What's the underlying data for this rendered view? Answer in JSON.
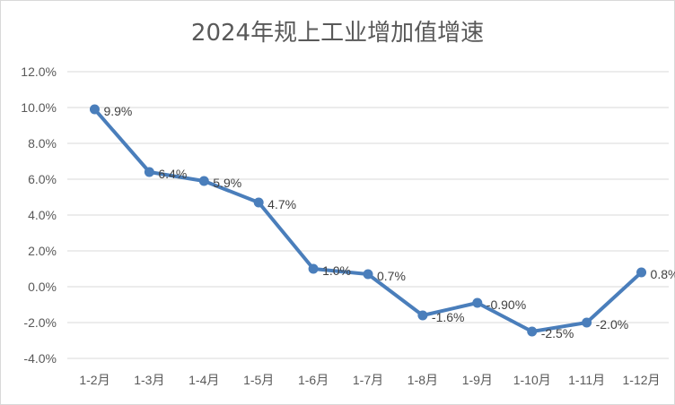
{
  "chart_data": {
    "type": "line",
    "title": "2024年规上工业增加值增速",
    "categories": [
      "1-2月",
      "1-3月",
      "1-4月",
      "1-5月",
      "1-6月",
      "1-7月",
      "1-8月",
      "1-9月",
      "1-10月",
      "1-11月",
      "1-12月"
    ],
    "series": [
      {
        "values": [
          9.9,
          6.4,
          5.9,
          4.7,
          1.0,
          0.7,
          -1.6,
          -0.9,
          -2.5,
          -2.0,
          0.8
        ],
        "data_labels": [
          "9.9%",
          "6.4%",
          "5.9%",
          "4.7%",
          "1.0%",
          "0.7%",
          "-1.6%",
          "-0.90%",
          "-2.5%",
          "-2.0%",
          "0.8%"
        ],
        "color": "#4a7ebb"
      }
    ],
    "y_ticks": [
      "12.0%",
      "10.0%",
      "8.0%",
      "6.0%",
      "4.0%",
      "2.0%",
      "0.0%",
      "-2.0%",
      "-4.0%"
    ],
    "ylim": [
      -4,
      12
    ],
    "grid": true,
    "colors": {
      "gridline": "#d9d9d9",
      "series": "#4a7ebb"
    }
  }
}
